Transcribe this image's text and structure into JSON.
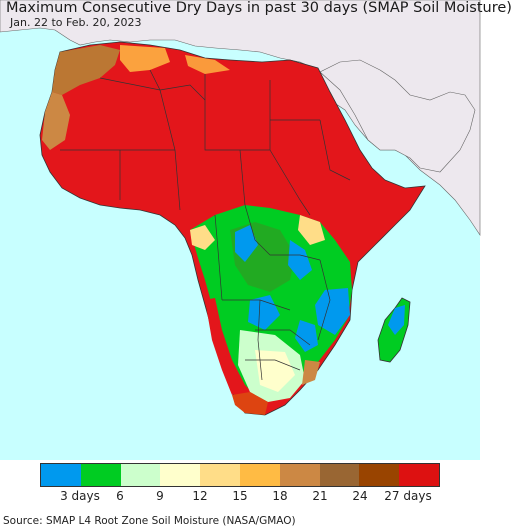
{
  "title": "Maximum Consecutive Dry Days in past 30 days (SMAP Soil Moisture)",
  "subtitle": "Jan. 22 to Feb. 20, 2023",
  "footer": "Source: SMAP L4 Root Zone Soil Moisture (NASA/GMAO)",
  "legend": {
    "colors": [
      "#0099ee",
      "#00cc22",
      "#ccffcc",
      "#ffffcc",
      "#ffdd88",
      "#ffbb44",
      "#cc8844",
      "#996633",
      "#994400",
      "#dd1111"
    ],
    "labels": [
      "3 days",
      "6",
      "9",
      "12",
      "15",
      "18",
      "21",
      "24",
      "27 days"
    ]
  },
  "colors": {
    "ocean": "#c8ffff",
    "land_other": "#ede8ee",
    "dry": "#e3161b"
  }
}
